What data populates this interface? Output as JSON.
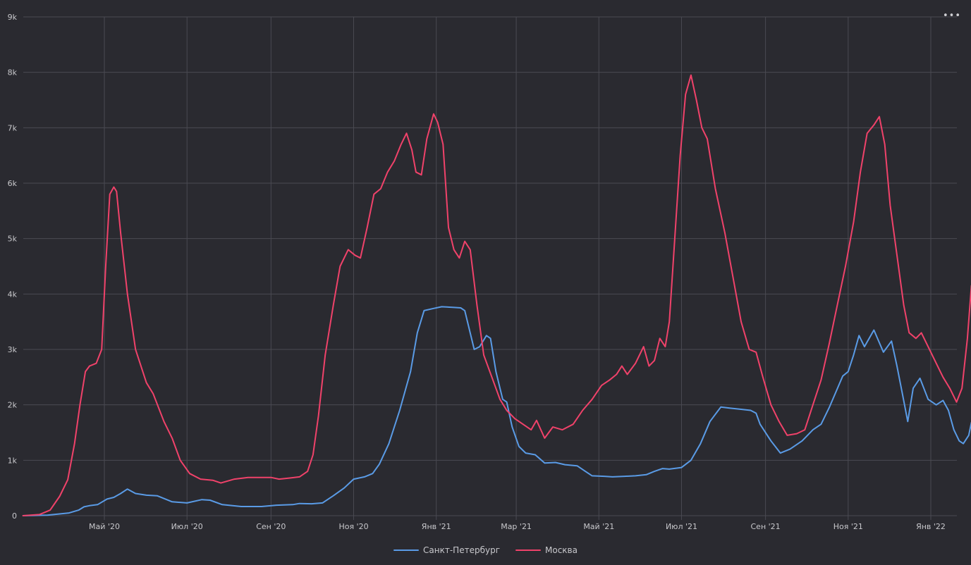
{
  "menu_label": "•••",
  "colors": {
    "background": "#2a2a30",
    "grid": "#4a4a52",
    "axis_text": "#c8c8cc",
    "spb": "#5a9be6",
    "msk": "#f0426a"
  },
  "chart_data": {
    "type": "line",
    "title": "",
    "xlabel": "",
    "ylabel": "",
    "ylim": [
      0,
      9000
    ],
    "xlim": [
      "2020-03-02",
      "2022-01-22"
    ],
    "grid": true,
    "legend_position": "bottom-center",
    "y_ticks": [
      {
        "value": 0,
        "label": "0"
      },
      {
        "value": 1000,
        "label": "1k"
      },
      {
        "value": 2000,
        "label": "2k"
      },
      {
        "value": 3000,
        "label": "3k"
      },
      {
        "value": 4000,
        "label": "4k"
      },
      {
        "value": 5000,
        "label": "5k"
      },
      {
        "value": 6000,
        "label": "6k"
      },
      {
        "value": 7000,
        "label": "7k"
      },
      {
        "value": 8000,
        "label": "8k"
      },
      {
        "value": 9000,
        "label": "9k"
      }
    ],
    "x_ticks": [
      {
        "date": "2020-05-01",
        "label": "Май '20"
      },
      {
        "date": "2020-07-01",
        "label": "Июл '20"
      },
      {
        "date": "2020-09-01",
        "label": "Сен '20"
      },
      {
        "date": "2020-11-01",
        "label": "Ноя '20"
      },
      {
        "date": "2021-01-01",
        "label": "Янв '21"
      },
      {
        "date": "2021-03-01",
        "label": "Мар '21"
      },
      {
        "date": "2021-05-01",
        "label": "Май '21"
      },
      {
        "date": "2021-07-01",
        "label": "Июл '21"
      },
      {
        "date": "2021-09-01",
        "label": "Сен '21"
      },
      {
        "date": "2021-11-01",
        "label": "Ноя '21"
      },
      {
        "date": "2022-01-01",
        "label": "Янв '22"
      }
    ],
    "series": [
      {
        "name": "Санкт-Петербург",
        "color": "#5a9be6",
        "points": [
          [
            "2020-03-02",
            0
          ],
          [
            "2020-03-20",
            10
          ],
          [
            "2020-04-05",
            50
          ],
          [
            "2020-04-12",
            100
          ],
          [
            "2020-04-16",
            160
          ],
          [
            "2020-04-20",
            180
          ],
          [
            "2020-04-26",
            200
          ],
          [
            "2020-05-03",
            300
          ],
          [
            "2020-05-08",
            330
          ],
          [
            "2020-05-13",
            400
          ],
          [
            "2020-05-18",
            480
          ],
          [
            "2020-05-24",
            400
          ],
          [
            "2020-06-01",
            370
          ],
          [
            "2020-06-09",
            360
          ],
          [
            "2020-06-20",
            250
          ],
          [
            "2020-07-01",
            230
          ],
          [
            "2020-07-12",
            290
          ],
          [
            "2020-07-18",
            280
          ],
          [
            "2020-07-27",
            200
          ],
          [
            "2020-08-10",
            165
          ],
          [
            "2020-08-25",
            165
          ],
          [
            "2020-09-05",
            190
          ],
          [
            "2020-09-17",
            200
          ],
          [
            "2020-09-22",
            220
          ],
          [
            "2020-10-01",
            215
          ],
          [
            "2020-10-09",
            230
          ],
          [
            "2020-10-17",
            360
          ],
          [
            "2020-10-25",
            500
          ],
          [
            "2020-11-01",
            660
          ],
          [
            "2020-11-09",
            700
          ],
          [
            "2020-11-15",
            760
          ],
          [
            "2020-11-20",
            930
          ],
          [
            "2020-11-27",
            1300
          ],
          [
            "2020-12-05",
            1900
          ],
          [
            "2020-12-13",
            2600
          ],
          [
            "2020-12-18",
            3300
          ],
          [
            "2020-12-23",
            3700
          ],
          [
            "2020-12-30",
            3740
          ],
          [
            "2021-01-05",
            3770
          ],
          [
            "2021-01-13",
            3760
          ],
          [
            "2021-01-19",
            3750
          ],
          [
            "2021-01-22",
            3700
          ],
          [
            "2021-01-29",
            3000
          ],
          [
            "2021-02-02",
            3050
          ],
          [
            "2021-02-07",
            3250
          ],
          [
            "2021-02-10",
            3200
          ],
          [
            "2021-02-14",
            2600
          ],
          [
            "2021-02-19",
            2100
          ],
          [
            "2021-02-22",
            2050
          ],
          [
            "2021-02-26",
            1600
          ],
          [
            "2021-03-03",
            1250
          ],
          [
            "2021-03-08",
            1130
          ],
          [
            "2021-03-15",
            1100
          ],
          [
            "2021-03-22",
            950
          ],
          [
            "2021-03-30",
            960
          ],
          [
            "2021-04-06",
            920
          ],
          [
            "2021-04-15",
            900
          ],
          [
            "2021-04-21",
            800
          ],
          [
            "2021-04-26",
            720
          ],
          [
            "2021-05-05",
            710
          ],
          [
            "2021-05-11",
            700
          ],
          [
            "2021-05-20",
            710
          ],
          [
            "2021-05-28",
            720
          ],
          [
            "2021-06-05",
            740
          ],
          [
            "2021-06-11",
            800
          ],
          [
            "2021-06-17",
            850
          ],
          [
            "2021-06-22",
            840
          ],
          [
            "2021-07-01",
            870
          ],
          [
            "2021-07-08",
            1000
          ],
          [
            "2021-07-15",
            1300
          ],
          [
            "2021-07-22",
            1700
          ],
          [
            "2021-07-30",
            1960
          ],
          [
            "2021-08-06",
            1940
          ],
          [
            "2021-08-14",
            1920
          ],
          [
            "2021-08-21",
            1900
          ],
          [
            "2021-08-25",
            1850
          ],
          [
            "2021-08-28",
            1650
          ],
          [
            "2021-09-05",
            1350
          ],
          [
            "2021-09-12",
            1130
          ],
          [
            "2021-09-19",
            1200
          ],
          [
            "2021-09-28",
            1350
          ],
          [
            "2021-10-06",
            1550
          ],
          [
            "2021-10-12",
            1650
          ],
          [
            "2021-10-18",
            1950
          ],
          [
            "2021-10-25",
            2350
          ],
          [
            "2021-10-28",
            2520
          ],
          [
            "2021-11-01",
            2600
          ],
          [
            "2021-11-05",
            2900
          ],
          [
            "2021-11-09",
            3250
          ],
          [
            "2021-11-13",
            3050
          ],
          [
            "2021-11-20",
            3350
          ],
          [
            "2021-11-27",
            2950
          ],
          [
            "2021-12-03",
            3150
          ],
          [
            "2021-12-07",
            2700
          ],
          [
            "2021-12-11",
            2200
          ],
          [
            "2021-12-15",
            1700
          ],
          [
            "2021-12-19",
            2300
          ],
          [
            "2021-12-24",
            2480
          ],
          [
            "2021-12-30",
            2100
          ],
          [
            "2022-01-05",
            2000
          ],
          [
            "2022-01-10",
            2080
          ],
          [
            "2022-01-14",
            1900
          ],
          [
            "2022-01-18",
            1550
          ],
          [
            "2022-01-22",
            1350
          ],
          [
            "2022-01-25",
            1300
          ],
          [
            "2022-01-29",
            1450
          ],
          [
            "2022-01-31",
            1680
          ]
        ]
      },
      {
        "name": "Москва",
        "color": "#f0426a",
        "points": [
          [
            "2020-03-02",
            0
          ],
          [
            "2020-03-14",
            20
          ],
          [
            "2020-03-22",
            100
          ],
          [
            "2020-03-29",
            350
          ],
          [
            "2020-04-04",
            650
          ],
          [
            "2020-04-09",
            1300
          ],
          [
            "2020-04-13",
            2000
          ],
          [
            "2020-04-17",
            2600
          ],
          [
            "2020-04-20",
            2700
          ],
          [
            "2020-04-25",
            2750
          ],
          [
            "2020-04-29",
            3000
          ],
          [
            "2020-05-02",
            4500
          ],
          [
            "2020-05-05",
            5800
          ],
          [
            "2020-05-08",
            5930
          ],
          [
            "2020-05-10",
            5850
          ],
          [
            "2020-05-13",
            5100
          ],
          [
            "2020-05-18",
            4000
          ],
          [
            "2020-05-24",
            3000
          ],
          [
            "2020-06-01",
            2400
          ],
          [
            "2020-06-06",
            2200
          ],
          [
            "2020-06-14",
            1700
          ],
          [
            "2020-06-20",
            1400
          ],
          [
            "2020-06-26",
            1000
          ],
          [
            "2020-07-03",
            760
          ],
          [
            "2020-07-11",
            660
          ],
          [
            "2020-07-20",
            640
          ],
          [
            "2020-07-26",
            590
          ],
          [
            "2020-08-05",
            660
          ],
          [
            "2020-08-15",
            690
          ],
          [
            "2020-08-25",
            690
          ],
          [
            "2020-09-01",
            690
          ],
          [
            "2020-09-07",
            660
          ],
          [
            "2020-09-15",
            680
          ],
          [
            "2020-09-22",
            700
          ],
          [
            "2020-09-28",
            800
          ],
          [
            "2020-10-02",
            1100
          ],
          [
            "2020-10-06",
            1800
          ],
          [
            "2020-10-11",
            2900
          ],
          [
            "2020-10-17",
            3800
          ],
          [
            "2020-10-22",
            4500
          ],
          [
            "2020-10-28",
            4800
          ],
          [
            "2020-11-02",
            4700
          ],
          [
            "2020-11-06",
            4650
          ],
          [
            "2020-11-11",
            5200
          ],
          [
            "2020-11-16",
            5800
          ],
          [
            "2020-11-21",
            5900
          ],
          [
            "2020-11-26",
            6200
          ],
          [
            "2020-12-01",
            6400
          ],
          [
            "2020-12-06",
            6700
          ],
          [
            "2020-12-10",
            6900
          ],
          [
            "2020-12-14",
            6600
          ],
          [
            "2020-12-17",
            6200
          ],
          [
            "2020-12-21",
            6150
          ],
          [
            "2020-12-25",
            6800
          ],
          [
            "2020-12-30",
            7250
          ],
          [
            "2021-01-02",
            7100
          ],
          [
            "2021-01-06",
            6700
          ],
          [
            "2021-01-10",
            5200
          ],
          [
            "2021-01-14",
            4800
          ],
          [
            "2021-01-18",
            4650
          ],
          [
            "2021-01-22",
            4950
          ],
          [
            "2021-01-26",
            4800
          ],
          [
            "2021-01-31",
            3800
          ],
          [
            "2021-02-05",
            2900
          ],
          [
            "2021-02-11",
            2500
          ],
          [
            "2021-02-17",
            2100
          ],
          [
            "2021-02-22",
            1900
          ],
          [
            "2021-02-28",
            1750
          ],
          [
            "2021-03-06",
            1650
          ],
          [
            "2021-03-12",
            1550
          ],
          [
            "2021-03-16",
            1720
          ],
          [
            "2021-03-22",
            1400
          ],
          [
            "2021-03-28",
            1600
          ],
          [
            "2021-04-04",
            1550
          ],
          [
            "2021-04-12",
            1650
          ],
          [
            "2021-04-19",
            1900
          ],
          [
            "2021-04-26",
            2100
          ],
          [
            "2021-05-03",
            2350
          ],
          [
            "2021-05-09",
            2450
          ],
          [
            "2021-05-14",
            2550
          ],
          [
            "2021-05-18",
            2700
          ],
          [
            "2021-05-22",
            2550
          ],
          [
            "2021-05-28",
            2750
          ],
          [
            "2021-06-03",
            3050
          ],
          [
            "2021-06-07",
            2700
          ],
          [
            "2021-06-11",
            2800
          ],
          [
            "2021-06-15",
            3200
          ],
          [
            "2021-06-19",
            3050
          ],
          [
            "2021-06-22",
            3500
          ],
          [
            "2021-06-26",
            5000
          ],
          [
            "2021-06-30",
            6500
          ],
          [
            "2021-07-04",
            7600
          ],
          [
            "2021-07-08",
            7950
          ],
          [
            "2021-07-12",
            7500
          ],
          [
            "2021-07-16",
            7000
          ],
          [
            "2021-07-20",
            6800
          ],
          [
            "2021-07-26",
            5900
          ],
          [
            "2021-08-02",
            5100
          ],
          [
            "2021-08-08",
            4300
          ],
          [
            "2021-08-14",
            3500
          ],
          [
            "2021-08-20",
            3000
          ],
          [
            "2021-08-25",
            2950
          ],
          [
            "2021-08-30",
            2500
          ],
          [
            "2021-09-05",
            2000
          ],
          [
            "2021-09-11",
            1700
          ],
          [
            "2021-09-17",
            1450
          ],
          [
            "2021-09-24",
            1480
          ],
          [
            "2021-09-30",
            1550
          ],
          [
            "2021-10-06",
            2000
          ],
          [
            "2021-10-12",
            2450
          ],
          [
            "2021-10-18",
            3100
          ],
          [
            "2021-10-24",
            3800
          ],
          [
            "2021-10-30",
            4500
          ],
          [
            "2021-11-05",
            5300
          ],
          [
            "2021-11-10",
            6200
          ],
          [
            "2021-11-15",
            6900
          ],
          [
            "2021-11-20",
            7050
          ],
          [
            "2021-11-24",
            7200
          ],
          [
            "2021-11-28",
            6700
          ],
          [
            "2021-12-02",
            5600
          ],
          [
            "2021-12-07",
            4700
          ],
          [
            "2021-12-12",
            3800
          ],
          [
            "2021-12-16",
            3300
          ],
          [
            "2021-12-21",
            3200
          ],
          [
            "2021-12-25",
            3300
          ],
          [
            "2021-12-30",
            3050
          ],
          [
            "2022-01-05",
            2750
          ],
          [
            "2022-01-10",
            2500
          ],
          [
            "2022-01-15",
            2300
          ],
          [
            "2022-01-20",
            2050
          ],
          [
            "2022-01-24",
            2300
          ],
          [
            "2022-01-28",
            3200
          ],
          [
            "2022-01-31",
            4150
          ]
        ]
      }
    ]
  }
}
